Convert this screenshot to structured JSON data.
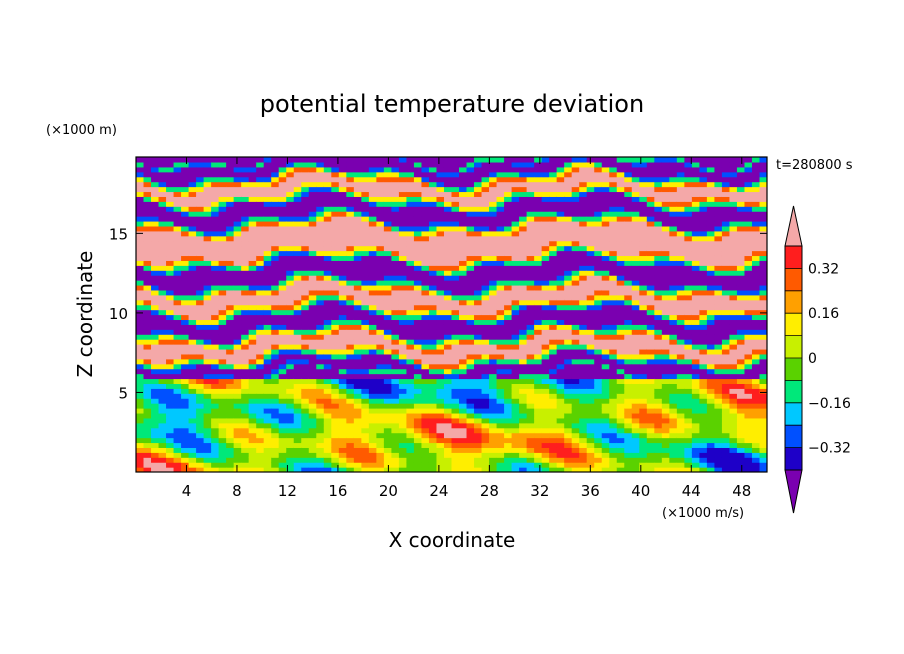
{
  "chart_data": {
    "type": "heatmap",
    "title": "potential temperature deviation",
    "xlabel": "X coordinate",
    "ylabel": "Z coordinate",
    "x_unit": "(×1000 m/s)",
    "y_unit": "(×1000 m)",
    "time_label": "t=280800 s",
    "xlim": [
      0,
      50
    ],
    "ylim": [
      0,
      19.8
    ],
    "x_ticks": [
      4,
      8,
      12,
      16,
      20,
      24,
      28,
      32,
      36,
      40,
      44,
      48
    ],
    "y_ticks": [
      5,
      10,
      15
    ],
    "colorbar": {
      "levels": [
        -0.4,
        -0.32,
        -0.24,
        -0.16,
        -0.08,
        0,
        0.08,
        0.16,
        0.24,
        0.32,
        0.4
      ],
      "labels": [
        "0.32",
        "0.16",
        "0",
        "−0.16",
        "−0.32"
      ],
      "label_values": [
        0.32,
        0.16,
        0,
        -0.16,
        -0.32
      ],
      "colors": [
        "#7a00b0",
        "#1e00c8",
        "#0050ff",
        "#00c8ff",
        "#00e87a",
        "#5ad200",
        "#c8f000",
        "#ffee00",
        "#ffa000",
        "#ff5a00",
        "#ff1e1e",
        "#f4a8a8"
      ],
      "extend": "both"
    },
    "field_bands": [
      {
        "zmin": 18.5,
        "zmax": 19.8,
        "value": -0.45
      },
      {
        "zmin": 17.2,
        "zmax": 18.5,
        "value": 0.45
      },
      {
        "zmin": 15.6,
        "zmax": 17.2,
        "value": -0.45
      },
      {
        "zmin": 13.4,
        "zmax": 15.6,
        "value": 0.45
      },
      {
        "zmin": 11.7,
        "zmax": 13.4,
        "value": -0.45
      },
      {
        "zmin": 10.2,
        "zmax": 11.7,
        "value": 0.45
      },
      {
        "zmin": 8.6,
        "zmax": 10.2,
        "value": -0.45
      },
      {
        "zmin": 7.2,
        "zmax": 8.6,
        "value": 0.45
      },
      {
        "zmin": 6.0,
        "zmax": 7.2,
        "value": -0.45
      }
    ],
    "lower_region": {
      "zmin": 0,
      "zmax": 6.0,
      "description_values": [
        -0.4,
        0.4
      ]
    }
  }
}
